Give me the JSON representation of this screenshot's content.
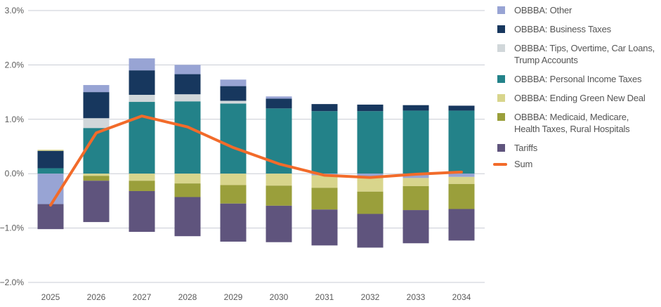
{
  "chart_data": {
    "type": "bar",
    "stacked": true,
    "title": "",
    "xlabel": "",
    "ylabel": "",
    "ylim": [
      -2.0,
      3.0
    ],
    "yticks": [
      3.0,
      2.0,
      1.0,
      0.0,
      -1.0,
      -2.0
    ],
    "ytick_labels": [
      "3.0%",
      "2.0%",
      "1.0%",
      "0.0%",
      "−1.0%",
      "−2.0%"
    ],
    "grid": true,
    "legend_position": "right",
    "categories": [
      "2025",
      "2026",
      "2027",
      "2028",
      "2029",
      "2030",
      "2031",
      "2032",
      "2033",
      "2034"
    ],
    "series": [
      {
        "key": "other",
        "name": "OBBBA: Other",
        "color": "#98a4d4",
        "values": [
          -0.56,
          0.13,
          0.22,
          0.17,
          0.12,
          0.04,
          -0.03,
          -0.08,
          -0.08,
          -0.06
        ]
      },
      {
        "key": "business",
        "name": "OBBBA: Business Taxes",
        "color": "#17375e",
        "values": [
          0.32,
          0.48,
          0.45,
          0.37,
          0.27,
          0.18,
          0.13,
          0.12,
          0.1,
          0.09
        ]
      },
      {
        "key": "tips",
        "name": "OBBBA: Tips, Overtime, Car Loans, Trump Accounts",
        "name_lines": [
          "OBBBA: Tips, Overtime, Car Loans,",
          "Trump Accounts"
        ],
        "color": "#d1d7da",
        "values": [
          0.0,
          0.18,
          0.13,
          0.13,
          0.05,
          0.0,
          0.0,
          0.0,
          0.0,
          0.0
        ]
      },
      {
        "key": "personal",
        "name": "OBBBA: Personal Income Taxes",
        "color": "#238289",
        "values": [
          0.1,
          0.84,
          1.32,
          1.33,
          1.29,
          1.2,
          1.15,
          1.15,
          1.16,
          1.16
        ]
      },
      {
        "key": "green",
        "name": "OBBBA: Ending Green New Deal",
        "color": "#d8d58c",
        "values": [
          0.02,
          -0.04,
          -0.13,
          -0.18,
          -0.21,
          -0.22,
          -0.23,
          -0.25,
          -0.15,
          -0.13
        ]
      },
      {
        "key": "medicaid",
        "name": "OBBBA: Medicaid, Medicare, Health Taxes, Rural Hospitals",
        "name_lines": [
          "OBBBA: Medicaid, Medicare,",
          "Health Taxes, Rural Hospitals"
        ],
        "color": "#9a9f3b",
        "values": [
          0.0,
          -0.09,
          -0.19,
          -0.25,
          -0.34,
          -0.37,
          -0.4,
          -0.41,
          -0.44,
          -0.46
        ]
      },
      {
        "key": "tariffs",
        "name": "Tariffs",
        "color": "#5f547d",
        "values": [
          -0.46,
          -0.76,
          -0.75,
          -0.72,
          -0.7,
          -0.67,
          -0.66,
          -0.62,
          -0.61,
          -0.58
        ]
      }
    ],
    "line_series": {
      "name": "Sum",
      "color": "#f26b2a",
      "values": [
        -0.58,
        0.75,
        1.06,
        0.86,
        0.48,
        0.18,
        -0.03,
        -0.07,
        -0.01,
        0.03
      ]
    },
    "positive_stack_order": [
      "personal",
      "tips",
      "business",
      "green",
      "other"
    ],
    "negative_stack_order": [
      "other",
      "green",
      "medicaid",
      "tariffs"
    ]
  },
  "legend": {
    "items": [
      {
        "label_lines": [
          "OBBBA: Other"
        ],
        "color": "#98a4d4",
        "type": "box"
      },
      {
        "label_lines": [
          "OBBBA: Business Taxes"
        ],
        "color": "#17375e",
        "type": "box"
      },
      {
        "label_lines": [
          "OBBBA: Tips, Overtime, Car Loans,",
          "Trump Accounts"
        ],
        "color": "#d1d7da",
        "type": "box"
      },
      {
        "label_lines": [
          "OBBBA: Personal Income Taxes"
        ],
        "color": "#238289",
        "type": "box"
      },
      {
        "label_lines": [
          "OBBBA: Ending Green New Deal"
        ],
        "color": "#d8d58c",
        "type": "box"
      },
      {
        "label_lines": [
          "OBBBA: Medicaid, Medicare,",
          "Health Taxes, Rural Hospitals"
        ],
        "color": "#9a9f3b",
        "type": "box"
      },
      {
        "label_lines": [
          "Tariffs"
        ],
        "color": "#5f547d",
        "type": "box"
      },
      {
        "label_lines": [
          "Sum"
        ],
        "color": "#f26b2a",
        "type": "line"
      }
    ]
  }
}
